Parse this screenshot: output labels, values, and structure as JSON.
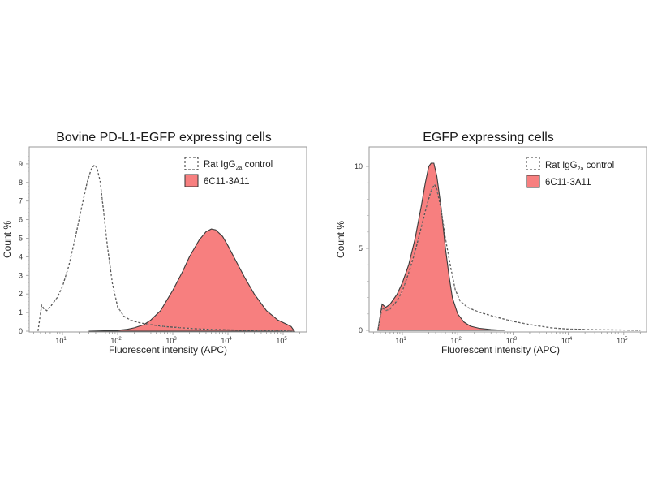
{
  "chart_data": [
    {
      "type": "area",
      "title": "Bovine PD-L1-EGFP expressing cells",
      "xlabel": "Fluorescent intensity (APC)",
      "ylabel": "Count %",
      "xscale": "log",
      "xlim": [
        3,
        200000
      ],
      "ylim": [
        0,
        9.8
      ],
      "xticks": [
        {
          "base": "10",
          "exp": "1",
          "value": 10
        },
        {
          "base": "10",
          "exp": "2",
          "value": 100
        },
        {
          "base": "10",
          "exp": "3",
          "value": 1000
        },
        {
          "base": "10",
          "exp": "4",
          "value": 10000
        },
        {
          "base": "10",
          "exp": "5",
          "value": 100000
        }
      ],
      "yticks": [
        "0",
        "1",
        "2",
        "3",
        "4",
        "5",
        "6",
        "7",
        "8",
        "9"
      ],
      "ytick_values": [
        0,
        1,
        2,
        3,
        4,
        5,
        6,
        7,
        8,
        9
      ],
      "legend_position": "top-right",
      "series": [
        {
          "name": "Rat IgG2a control",
          "style": "dashed",
          "color": "#555555",
          "x": [
            3.6,
            4.2,
            4.6,
            5.2,
            6.0,
            8.0,
            10,
            13,
            17,
            22,
            28,
            33,
            38,
            42,
            48,
            55,
            65,
            80,
            100,
            130,
            170,
            250,
            400,
            700,
            1500,
            3000,
            8000,
            20000,
            60000,
            150000
          ],
          "y": [
            0,
            1.4,
            1.2,
            1.1,
            1.3,
            1.8,
            2.4,
            3.5,
            5.0,
            6.6,
            8.0,
            8.7,
            8.95,
            8.8,
            8.1,
            6.6,
            4.6,
            2.6,
            1.3,
            0.8,
            0.6,
            0.45,
            0.35,
            0.25,
            0.18,
            0.12,
            0.08,
            0.05,
            0.03,
            0
          ]
        },
        {
          "name": "6C11-3A11",
          "style": "filled",
          "color": "#f77f7f",
          "x": [
            30,
            60,
            100,
            150,
            200,
            300,
            400,
            600,
            1000,
            1500,
            2000,
            3000,
            4000,
            5000,
            6000,
            8000,
            10000,
            15000,
            20000,
            30000,
            50000,
            80000,
            120000,
            140000,
            160000
          ],
          "y": [
            0,
            0.02,
            0.05,
            0.1,
            0.18,
            0.35,
            0.6,
            1.1,
            2.2,
            3.2,
            4.0,
            4.9,
            5.35,
            5.5,
            5.45,
            5.1,
            4.6,
            3.6,
            2.9,
            2.0,
            1.1,
            0.6,
            0.35,
            0.25,
            0
          ]
        }
      ]
    },
    {
      "type": "area",
      "title": "EGFP expressing cells",
      "xlabel": "Fluorescent intensity (APC)",
      "ylabel": "Count %",
      "xscale": "log",
      "xlim": [
        3,
        200000
      ],
      "ylim": [
        0,
        10.8
      ],
      "xticks": [
        {
          "base": "10",
          "exp": "1",
          "value": 10
        },
        {
          "base": "10",
          "exp": "2",
          "value": 100
        },
        {
          "base": "10",
          "exp": "3",
          "value": 1000
        },
        {
          "base": "10",
          "exp": "4",
          "value": 10000
        },
        {
          "base": "10",
          "exp": "5",
          "value": 100000
        }
      ],
      "yticks": [
        "0",
        "5",
        "10"
      ],
      "ytick_values": [
        0,
        5,
        10
      ],
      "legend_position": "top-right",
      "series": [
        {
          "name": "Rat IgG2a control",
          "style": "dashed",
          "color": "#555555",
          "x": [
            3.6,
            4.3,
            5.0,
            6.0,
            8.0,
            10,
            13,
            17,
            22,
            28,
            33,
            38,
            42,
            50,
            60,
            75,
            90,
            110,
            150,
            250,
            500,
            1000,
            2000,
            5000,
            10000,
            30000,
            100000,
            200000
          ],
          "y": [
            0,
            1.4,
            1.2,
            1.3,
            1.8,
            2.4,
            3.5,
            4.8,
            6.3,
            7.7,
            8.5,
            8.9,
            8.6,
            7.4,
            5.6,
            3.8,
            2.5,
            1.8,
            1.4,
            1.1,
            0.8,
            0.55,
            0.35,
            0.15,
            0.08,
            0.04,
            0.02,
            0
          ]
        },
        {
          "name": "6C11-3A11",
          "style": "filled",
          "color": "#f77f7f",
          "x": [
            3.6,
            4.3,
            5.0,
            6.0,
            8.0,
            10,
            13,
            17,
            22,
            26,
            30,
            33,
            37,
            42,
            50,
            60,
            70,
            80,
            100,
            130,
            170,
            250,
            400,
            700
          ],
          "y": [
            0,
            1.6,
            1.4,
            1.6,
            2.2,
            2.9,
            4.0,
            5.6,
            7.6,
            9.0,
            10.0,
            10.2,
            10.2,
            9.4,
            7.5,
            5.0,
            3.3,
            2.0,
            1.0,
            0.5,
            0.25,
            0.12,
            0.05,
            0
          ]
        }
      ]
    }
  ],
  "legend": {
    "control_prefix": "Rat IgG",
    "control_sub": "2a",
    "control_suffix": " control",
    "antibody": "6C11-3A11"
  }
}
